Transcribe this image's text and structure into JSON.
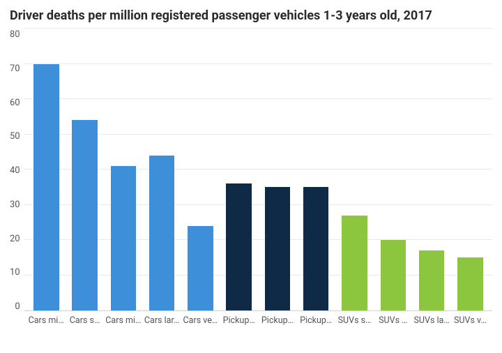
{
  "chart": {
    "type": "bar",
    "title": "Driver deaths per million registered passenger vehicles 1-3 years old, 2017",
    "title_fontsize": 18,
    "title_color": "#2a2a2a",
    "background_color": "#ffffff",
    "grid_color": "#e9e9e9",
    "axis_label_color": "#555555",
    "axis_label_fontsize": 13,
    "ylim": [
      0,
      80
    ],
    "ytick_step": 10,
    "yticks": [
      0,
      10,
      20,
      30,
      40,
      50,
      60,
      70,
      80
    ],
    "bar_width": 0.66,
    "categories_full": [
      "Cars mini",
      "Cars small",
      "Cars midsize",
      "Cars large",
      "Cars very large",
      "Pickups small",
      "Pickups large",
      "Pickups very large",
      "SUVs small",
      "SUVs midsize",
      "SUVs large",
      "SUVs very large"
    ],
    "categories_display": [
      "Cars mini",
      "Cars s…",
      "Cars mi…",
      "Cars lar…",
      "Cars ve…",
      "Pickup…",
      "Pickup…",
      "Pickup…",
      "SUVs s…",
      "SUVs …",
      "SUVs la…",
      "SUVs v…"
    ],
    "values": [
      70,
      54,
      41,
      44,
      24,
      36,
      35,
      35,
      27,
      20,
      17,
      15
    ],
    "bar_colors": [
      "#3e8fd9",
      "#3e8fd9",
      "#3e8fd9",
      "#3e8fd9",
      "#3e8fd9",
      "#0e2a47",
      "#0e2a47",
      "#0e2a47",
      "#8cc63f",
      "#8cc63f",
      "#8cc63f",
      "#8cc63f"
    ],
    "series_palette": {
      "Cars": "#3e8fd9",
      "Pickups": "#0e2a47",
      "SUVs": "#8cc63f"
    }
  }
}
